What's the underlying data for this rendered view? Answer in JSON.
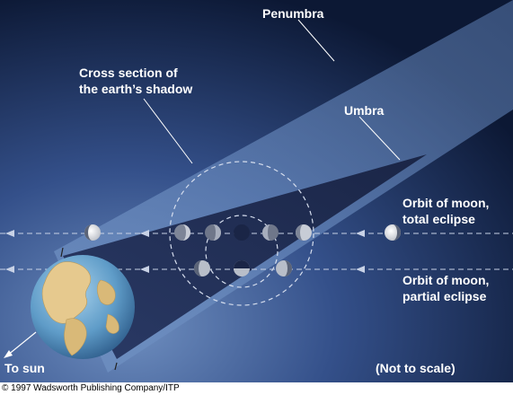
{
  "labels": {
    "penumbra": "Penumbra",
    "cross_section_line1": "Cross section of",
    "cross_section_line2": "the earth’s shadow",
    "umbra": "Umbra",
    "orbit_total_line1": "Orbit of moon,",
    "orbit_total_line2": "total eclipse",
    "orbit_partial_line1": "Orbit of moon,",
    "orbit_partial_line2": "partial eclipse",
    "to_sun": "To sun",
    "not_to_scale": "(Not to scale)"
  },
  "credit": "© 1997 Wadsworth Publishing Company/ITP",
  "colors": {
    "background_top": "#0d1a38",
    "background_bottom": "#4f6ea0",
    "penumbra": "#5b7cae",
    "umbra": "#1f2c52",
    "orbit_line": "#c8d2e6",
    "label": "#ffffff"
  }
}
